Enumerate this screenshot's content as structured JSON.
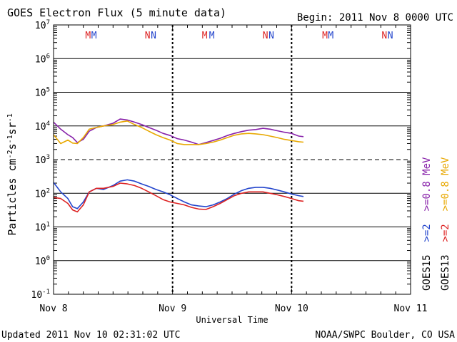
{
  "header": {
    "title": "GOES Electron Flux (5 minute data)",
    "begin": "Begin: 2011 Nov 8 0000 UTC"
  },
  "footer": {
    "updated": "Updated 2011 Nov 10 02:31:02 UTC",
    "source": "NOAA/SWPC Boulder, CO USA"
  },
  "chart_data": {
    "type": "line",
    "title": "GOES Electron Flux (5 minute data)",
    "xlabel": "Universal Time",
    "ylabel_html": "Particles cm<tspan baseline-shift=\"super\" font-size=\"10\">-2</tspan>s<tspan baseline-shift=\"super\" font-size=\"10\">-1</tspan>sr<tspan baseline-shift=\"super\" font-size=\"10\">-1</tspan>",
    "ylabel": "Particles cm-2s-1sr-1",
    "yscale": "log",
    "ylim_exp": [
      -1,
      7
    ],
    "y_ticks": [
      {
        "exp": 7,
        "label": "10",
        "sup": "7"
      },
      {
        "exp": 6,
        "label": "10",
        "sup": "6"
      },
      {
        "exp": 5,
        "label": "10",
        "sup": "5"
      },
      {
        "exp": 4,
        "label": "10",
        "sup": "4"
      },
      {
        "exp": 3,
        "label": "10",
        "sup": "3"
      },
      {
        "exp": 2,
        "label": "10",
        "sup": "2"
      },
      {
        "exp": 1,
        "label": "10",
        "sup": "1"
      },
      {
        "exp": 0,
        "label": "10",
        "sup": "0"
      },
      {
        "exp": -1,
        "label": "10",
        "sup": "-1"
      }
    ],
    "xlim_days": [
      0,
      3
    ],
    "x_ticks": [
      {
        "day": 0,
        "label": "Nov 8"
      },
      {
        "day": 1,
        "label": "Nov 9"
      },
      {
        "day": 2,
        "label": "Nov 10"
      },
      {
        "day": 3,
        "label": "Nov 11"
      }
    ],
    "threshold_exp": 3,
    "grid": true,
    "markers": [
      {
        "day": 0.29,
        "label": "M",
        "color": "#dd2222"
      },
      {
        "day": 0.34,
        "label": "M",
        "color": "#2244cc"
      },
      {
        "day": 0.79,
        "label": "N",
        "color": "#dd2222"
      },
      {
        "day": 0.84,
        "label": "N",
        "color": "#2244cc"
      },
      {
        "day": 1.27,
        "label": "M",
        "color": "#dd2222"
      },
      {
        "day": 1.33,
        "label": "M",
        "color": "#2244cc"
      },
      {
        "day": 1.78,
        "label": "N",
        "color": "#dd2222"
      },
      {
        "day": 1.83,
        "label": "N",
        "color": "#2244cc"
      },
      {
        "day": 2.28,
        "label": "M",
        "color": "#dd2222"
      },
      {
        "day": 2.33,
        "label": "M",
        "color": "#2244cc"
      },
      {
        "day": 2.78,
        "label": "N",
        "color": "#dd2222"
      },
      {
        "day": 2.83,
        "label": "N",
        "color": "#2244cc"
      }
    ],
    "legend": [
      {
        "text": ">=0.8  MeV",
        "color": "#8822aa",
        "column": 1
      },
      {
        "text": ">=2",
        "color": "#2244cc",
        "column": 1
      },
      {
        "text": "GOES15",
        "color": "#000000",
        "column": 1
      },
      {
        "text": ">=0.8  MeV",
        "color": "#e8a800",
        "column": 2
      },
      {
        "text": ">=2",
        "color": "#dd2222",
        "column": 2
      },
      {
        "text": "GOES13",
        "color": "#000000",
        "column": 2
      }
    ],
    "series": [
      {
        "name": "GOES15 >=0.8 MeV",
        "color": "#8822aa",
        "x": [
          0.0,
          0.06,
          0.12,
          0.16,
          0.2,
          0.25,
          0.3,
          0.36,
          0.42,
          0.5,
          0.56,
          0.62,
          0.68,
          0.74,
          0.8,
          0.86,
          0.92,
          0.98,
          1.04,
          1.1,
          1.16,
          1.22,
          1.28,
          1.34,
          1.4,
          1.46,
          1.52,
          1.58,
          1.64,
          1.7,
          1.76,
          1.82,
          1.88,
          1.94,
          2.0,
          2.06,
          2.1
        ],
        "y": [
          13000,
          8000,
          5500,
          4500,
          3200,
          4000,
          7000,
          9000,
          10000,
          12000,
          16000,
          15000,
          13000,
          11000,
          9000,
          7500,
          6000,
          5200,
          4200,
          3800,
          3300,
          2800,
          3200,
          3700,
          4300,
          5200,
          6000,
          6800,
          7500,
          7800,
          8500,
          8000,
          7200,
          6500,
          6000,
          5000,
          4800
        ]
      },
      {
        "name": "GOES13 >=0.8 MeV",
        "color": "#e8a800",
        "x": [
          0.0,
          0.06,
          0.12,
          0.16,
          0.2,
          0.25,
          0.3,
          0.36,
          0.42,
          0.5,
          0.56,
          0.62,
          0.68,
          0.74,
          0.8,
          0.86,
          0.92,
          0.98,
          1.04,
          1.1,
          1.16,
          1.22,
          1.28,
          1.34,
          1.4,
          1.46,
          1.52,
          1.58,
          1.64,
          1.7,
          1.76,
          1.82,
          1.88,
          1.94,
          2.0,
          2.06,
          2.1
        ],
        "y": [
          5500,
          3000,
          3800,
          3100,
          3000,
          4500,
          8000,
          9000,
          10000,
          11000,
          13000,
          14000,
          11000,
          9000,
          7000,
          5500,
          4500,
          3800,
          3000,
          2800,
          2800,
          2800,
          3000,
          3300,
          3800,
          4500,
          5300,
          5800,
          6000,
          5800,
          5500,
          5000,
          4500,
          4000,
          3700,
          3400,
          3300
        ]
      },
      {
        "name": "GOES15 >=2 MeV",
        "color": "#2244cc",
        "x": [
          0.0,
          0.06,
          0.12,
          0.16,
          0.2,
          0.25,
          0.3,
          0.36,
          0.42,
          0.5,
          0.56,
          0.62,
          0.68,
          0.74,
          0.8,
          0.86,
          0.92,
          0.98,
          1.04,
          1.1,
          1.16,
          1.22,
          1.28,
          1.34,
          1.4,
          1.46,
          1.52,
          1.58,
          1.64,
          1.7,
          1.76,
          1.82,
          1.88,
          1.94,
          2.0,
          2.06,
          2.1
        ],
        "y": [
          210,
          110,
          70,
          40,
          35,
          55,
          110,
          140,
          130,
          170,
          230,
          250,
          230,
          190,
          160,
          130,
          110,
          90,
          70,
          55,
          45,
          42,
          40,
          45,
          55,
          70,
          95,
          120,
          140,
          150,
          150,
          140,
          125,
          110,
          95,
          85,
          80
        ]
      },
      {
        "name": "GOES13 >=2 MeV",
        "color": "#dd2222",
        "x": [
          0.0,
          0.06,
          0.12,
          0.16,
          0.2,
          0.25,
          0.3,
          0.36,
          0.42,
          0.5,
          0.56,
          0.62,
          0.68,
          0.74,
          0.8,
          0.86,
          0.92,
          0.98,
          1.04,
          1.1,
          1.16,
          1.22,
          1.28,
          1.34,
          1.4,
          1.46,
          1.52,
          1.58,
          1.64,
          1.7,
          1.76,
          1.82,
          1.88,
          1.94,
          2.0,
          2.06,
          2.1
        ],
        "y": [
          75,
          70,
          50,
          32,
          28,
          45,
          110,
          140,
          140,
          160,
          200,
          190,
          170,
          140,
          110,
          85,
          65,
          55,
          50,
          45,
          38,
          34,
          33,
          40,
          50,
          65,
          85,
          100,
          110,
          110,
          110,
          100,
          90,
          80,
          70,
          60,
          58
        ]
      }
    ]
  }
}
